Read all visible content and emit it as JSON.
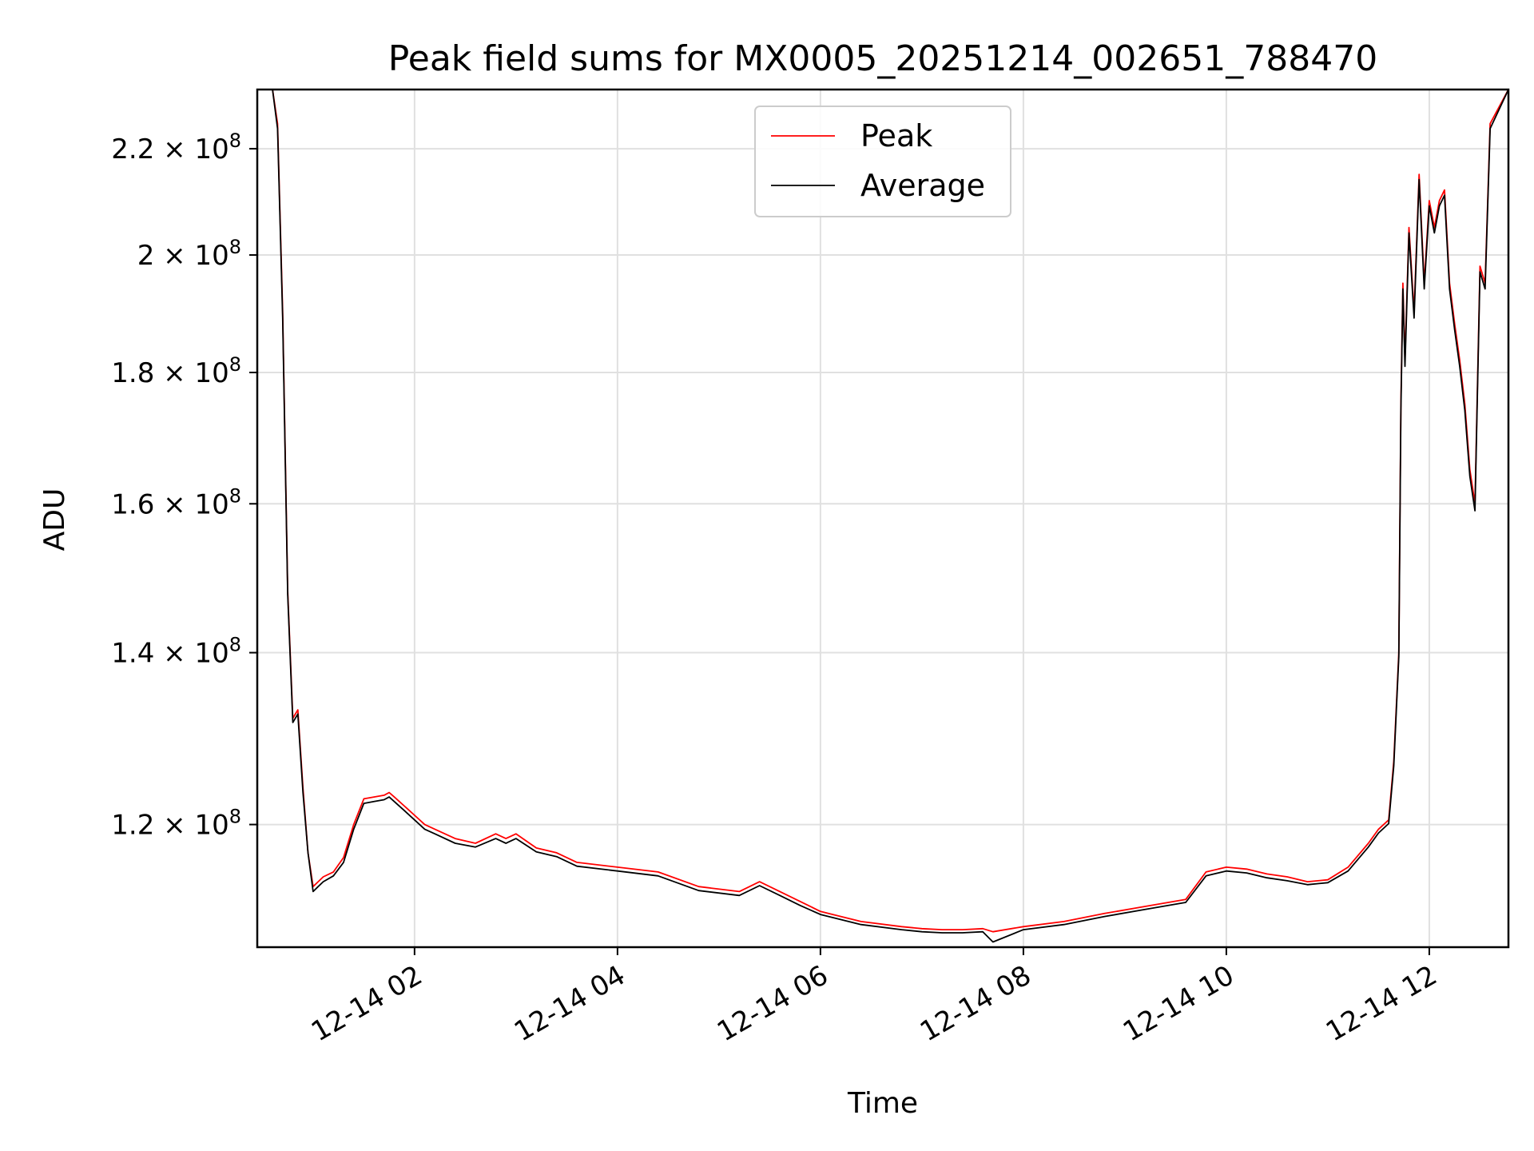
{
  "chart_data": {
    "type": "line",
    "title": "Peak field sums for MX0005_20251214_002651_788470",
    "xlabel": "Time",
    "ylabel": "ADU",
    "yscale": "log",
    "grid": true,
    "legend": "upper center",
    "x_ticks": [
      {
        "h": 2,
        "label": "12-14 02"
      },
      {
        "h": 4,
        "label": "12-14 04"
      },
      {
        "h": 6,
        "label": "12-14 06"
      },
      {
        "h": 8,
        "label": "12-14 08"
      },
      {
        "h": 10,
        "label": "12-14 10"
      },
      {
        "h": 12,
        "label": "12-14 12"
      }
    ],
    "y_ticks": [
      {
        "v": 120000000,
        "mant": "1.2",
        "exp": "8"
      },
      {
        "v": 140000000,
        "mant": "1.4",
        "exp": "8"
      },
      {
        "v": 160000000,
        "mant": "1.6",
        "exp": "8"
      },
      {
        "v": 180000000,
        "mant": "1.8",
        "exp": "8"
      },
      {
        "v": 200000000,
        "mant": "2",
        "exp": "8"
      },
      {
        "v": 220000000,
        "mant": "2.2",
        "exp": "8"
      }
    ],
    "xlim_hours": [
      0.45,
      12.78
    ],
    "ylim": [
      107500000,
      232000000
    ],
    "colors": {
      "peak": "#ff0000",
      "average": "#000000"
    },
    "series": [
      {
        "name": "Peak",
        "color": "#ff0000",
        "x_hours": [
          0.45,
          0.6,
          0.65,
          0.7,
          0.75,
          0.8,
          0.85,
          0.9,
          0.95,
          1.0,
          1.05,
          1.1,
          1.2,
          1.3,
          1.4,
          1.5,
          1.6,
          1.7,
          1.75,
          1.8,
          1.9,
          2.0,
          2.1,
          2.2,
          2.4,
          2.6,
          2.8,
          2.9,
          3.0,
          3.2,
          3.4,
          3.6,
          4.0,
          4.4,
          4.8,
          5.2,
          5.4,
          5.6,
          5.8,
          6.0,
          6.4,
          6.8,
          7.0,
          7.2,
          7.4,
          7.6,
          7.7,
          8.0,
          8.4,
          8.8,
          9.2,
          9.6,
          9.8,
          10.0,
          10.2,
          10.4,
          10.6,
          10.8,
          11.0,
          11.2,
          11.4,
          11.5,
          11.6,
          11.65,
          11.7,
          11.72,
          11.74,
          11.76,
          11.8,
          11.85,
          11.9,
          11.95,
          12.0,
          12.05,
          12.1,
          12.15,
          12.2,
          12.25,
          12.3,
          12.35,
          12.4,
          12.45,
          12.5,
          12.55,
          12.6,
          12.78
        ],
        "values": [
          232000000,
          232000000,
          225000000,
          190000000,
          148000000,
          132000000,
          133000000,
          124000000,
          117000000,
          113500000,
          114000000,
          114500000,
          115000000,
          116500000,
          120000000,
          122800000,
          123000000,
          123200000,
          123500000,
          123000000,
          122000000,
          121000000,
          120000000,
          119500000,
          118500000,
          118000000,
          119000000,
          118500000,
          119000000,
          117500000,
          117000000,
          116000000,
          115500000,
          115000000,
          113500000,
          113000000,
          114000000,
          113000000,
          112000000,
          111000000,
          110000000,
          109500000,
          109300000,
          109200000,
          109200000,
          109300000,
          109000000,
          109500000,
          110000000,
          110800000,
          111500000,
          112200000,
          115000000,
          115500000,
          115300000,
          114800000,
          114500000,
          114000000,
          114200000,
          115500000,
          118000000,
          119500000,
          120500000,
          127000000,
          140000000,
          175000000,
          195000000,
          182000000,
          205000000,
          190000000,
          215000000,
          195000000,
          210000000,
          205000000,
          210000000,
          212000000,
          195000000,
          188000000,
          182000000,
          175000000,
          165000000,
          160000000,
          198000000,
          195000000,
          225000000,
          232000000
        ]
      },
      {
        "name": "Average",
        "color": "#000000",
        "x_hours": [
          0.45,
          0.6,
          0.65,
          0.7,
          0.75,
          0.8,
          0.85,
          0.9,
          0.95,
          1.0,
          1.05,
          1.1,
          1.2,
          1.3,
          1.4,
          1.5,
          1.6,
          1.7,
          1.75,
          1.8,
          1.9,
          2.0,
          2.1,
          2.2,
          2.4,
          2.6,
          2.8,
          2.9,
          3.0,
          3.2,
          3.4,
          3.6,
          4.0,
          4.4,
          4.8,
          5.2,
          5.4,
          5.6,
          5.8,
          6.0,
          6.4,
          6.8,
          7.0,
          7.2,
          7.4,
          7.6,
          7.7,
          8.0,
          8.4,
          8.8,
          9.2,
          9.6,
          9.8,
          10.0,
          10.2,
          10.4,
          10.6,
          10.8,
          11.0,
          11.2,
          11.4,
          11.5,
          11.6,
          11.65,
          11.7,
          11.72,
          11.74,
          11.76,
          11.8,
          11.85,
          11.9,
          11.95,
          12.0,
          12.05,
          12.1,
          12.15,
          12.2,
          12.25,
          12.3,
          12.35,
          12.4,
          12.45,
          12.5,
          12.55,
          12.6,
          12.78
        ],
        "values": [
          232000000,
          232000000,
          224000000,
          189000000,
          147500000,
          131500000,
          132500000,
          123500000,
          117000000,
          113000000,
          113500000,
          114000000,
          114600000,
          116000000,
          119500000,
          122300000,
          122500000,
          122700000,
          123000000,
          122500000,
          121500000,
          120500000,
          119500000,
          119000000,
          118000000,
          117600000,
          118500000,
          118000000,
          118500000,
          117100000,
          116600000,
          115600000,
          115100000,
          114600000,
          113100000,
          112600000,
          113600000,
          112600000,
          111600000,
          110700000,
          109700000,
          109200000,
          109000000,
          108900000,
          108900000,
          109000000,
          108000000,
          109200000,
          109700000,
          110500000,
          111200000,
          111900000,
          114600000,
          115100000,
          114900000,
          114400000,
          114100000,
          113700000,
          113900000,
          115100000,
          117600000,
          119100000,
          120100000,
          126500000,
          139500000,
          174000000,
          194000000,
          181000000,
          204000000,
          189000000,
          214000000,
          194000000,
          209000000,
          204000000,
          209000000,
          211000000,
          194000000,
          187000000,
          181000000,
          174000000,
          164000000,
          159000000,
          197000000,
          194000000,
          224000000,
          232000000
        ]
      }
    ]
  }
}
